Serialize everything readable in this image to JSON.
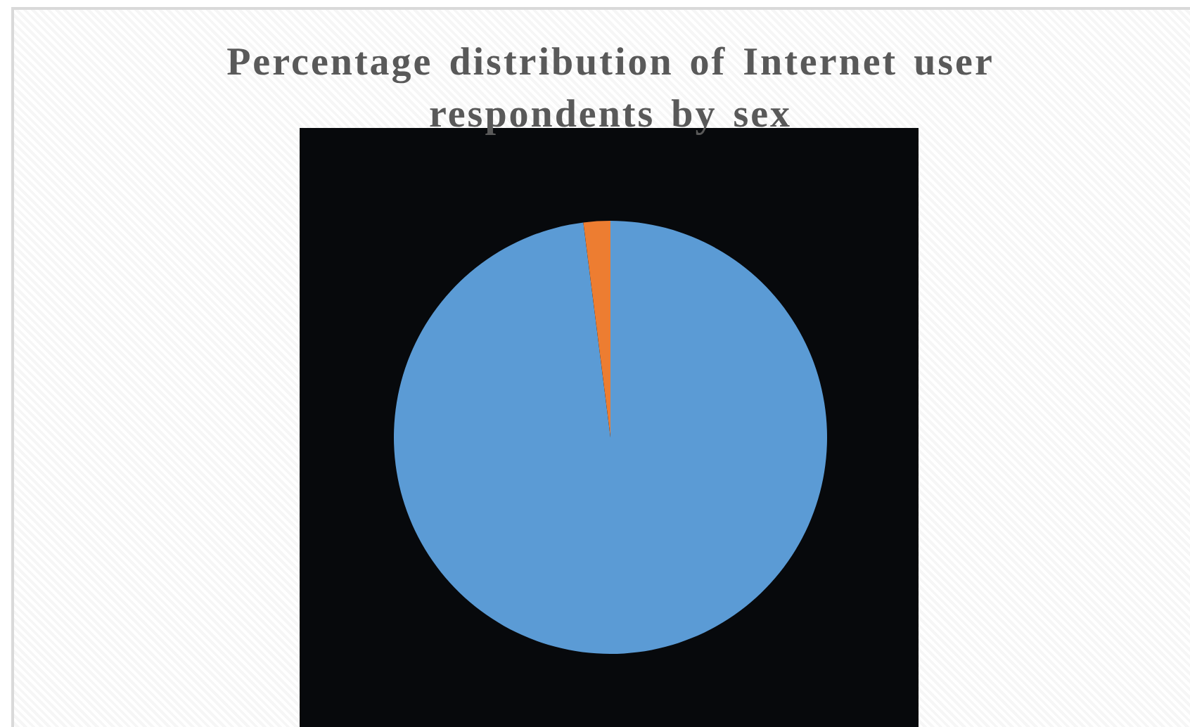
{
  "chart_data": {
    "type": "pie",
    "title": "Percentage distribution of Internet user respondents by sex",
    "categories": [
      null,
      null
    ],
    "values": [
      98,
      2
    ],
    "colors": [
      "#5b9bd5",
      "#ed7d31"
    ],
    "legend": false
  }
}
